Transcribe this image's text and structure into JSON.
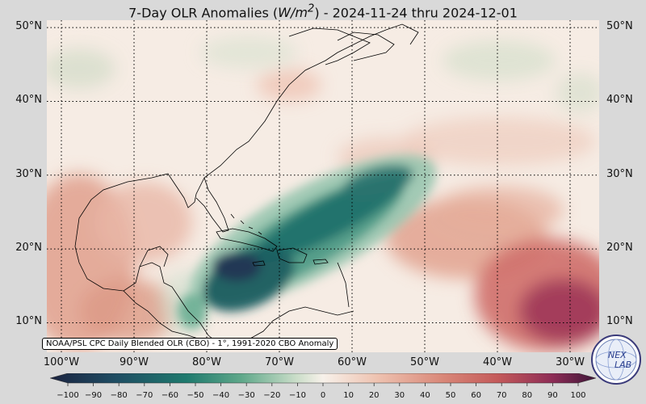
{
  "title": {
    "prefix": "7-Day OLR Anomalies (",
    "unit_html": "W/m²",
    "suffix": ") - 2024-11-24 thru 2024-12-01",
    "full": "7-Day OLR Anomalies (W/m²) - 2024-11-24 thru 2024-12-01"
  },
  "source_note": "NOAA/PSL CPC Daily Blended OLR (CBO) - 1°, 1991-2020 CBO Anomaly",
  "map": {
    "lon_min": -102,
    "lon_max": -26,
    "lat_min": 6,
    "lat_max": 51,
    "gridline_lons": [
      -100,
      -90,
      -80,
      -70,
      -60,
      -50,
      -40,
      -30
    ],
    "gridline_lats": [
      10,
      20,
      30,
      40,
      50
    ],
    "grid": "dotted",
    "lat_labels": [
      {
        "lat": 50,
        "text": "50°N"
      },
      {
        "lat": 40,
        "text": "40°N"
      },
      {
        "lat": 30,
        "text": "30°N"
      },
      {
        "lat": 20,
        "text": "20°N"
      },
      {
        "lat": 10,
        "text": "10°N"
      }
    ],
    "lon_labels": [
      {
        "lon": -100,
        "text": "100°W"
      },
      {
        "lon": -90,
        "text": "90°W"
      },
      {
        "lon": -80,
        "text": "80°W"
      },
      {
        "lon": -70,
        "text": "70°W"
      },
      {
        "lon": -60,
        "text": "60°W"
      },
      {
        "lon": -50,
        "text": "50°W"
      },
      {
        "lon": -40,
        "text": "40°W"
      },
      {
        "lon": -30,
        "text": "30°W"
      }
    ]
  },
  "colorbar": {
    "min": -100,
    "max": 100,
    "ticks": [
      "−100",
      "−90",
      "−80",
      "−70",
      "−60",
      "−50",
      "−40",
      "−30",
      "−20",
      "−10",
      "0",
      "10",
      "20",
      "30",
      "40",
      "50",
      "60",
      "70",
      "80",
      "90",
      "100"
    ],
    "colors": {
      "strong_negative": "#1f2d4a",
      "negative": "#1f6f6a",
      "mid_negative": "#5fa88a",
      "neutral": "#f7f1ea",
      "mid_positive": "#e4a792",
      "positive": "#c45a5a",
      "strong_positive": "#5c1a4a"
    }
  },
  "logo": {
    "icon": "nex-lab-globe-logo",
    "text_top": "NEX",
    "text_bottom": "LAB"
  }
}
